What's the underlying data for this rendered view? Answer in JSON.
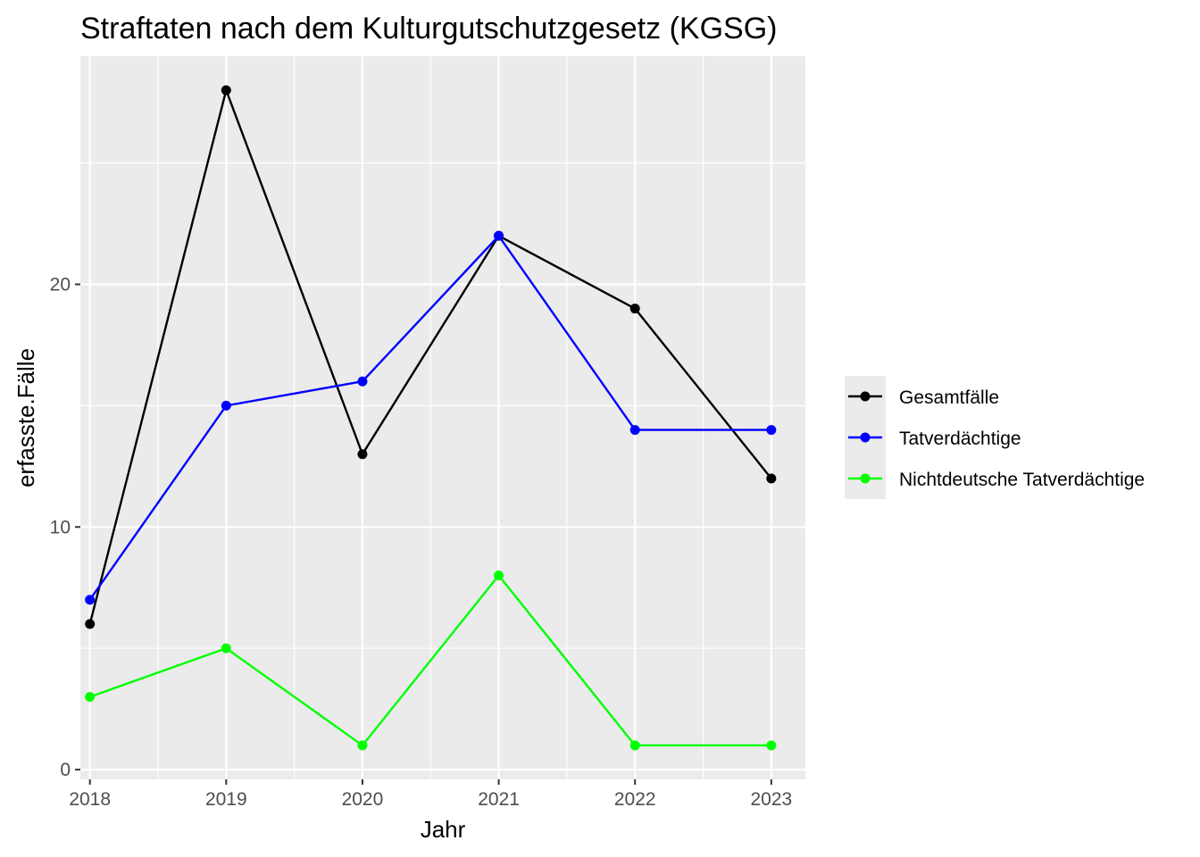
{
  "chart_data": {
    "type": "line",
    "title": "Straftaten nach dem Kulturgutschutzgesetz (KGSG)",
    "xlabel": "Jahr",
    "ylabel": "erfasste.Fälle",
    "x": [
      2018,
      2019,
      2020,
      2021,
      2022,
      2023
    ],
    "x_tick_labels": [
      "2018",
      "2019",
      "2020",
      "2021",
      "2022",
      "2023"
    ],
    "y_ticks": [
      0,
      10,
      20
    ],
    "y_tick_labels": [
      "0",
      "10",
      "20"
    ],
    "xlim": [
      2017.93,
      2023.25
    ],
    "ylim": [
      -0.4,
      29.4
    ],
    "grid": true,
    "legend_position": "right",
    "colors": {
      "panel_background": "#ebebeb",
      "grid": "#ffffff",
      "tick": "#333333"
    },
    "series": [
      {
        "name": "Gesamtfälle",
        "color": "#000000",
        "values": [
          6,
          28,
          13,
          22,
          19,
          12
        ]
      },
      {
        "name": "Tatverdächtige",
        "color": "#0000ff",
        "values": [
          7,
          15,
          16,
          22,
          14,
          14
        ]
      },
      {
        "name": "Nichtdeutsche Tatverdächtige",
        "color": "#00ff00",
        "values": [
          3,
          5,
          1,
          8,
          1,
          1
        ]
      }
    ]
  }
}
